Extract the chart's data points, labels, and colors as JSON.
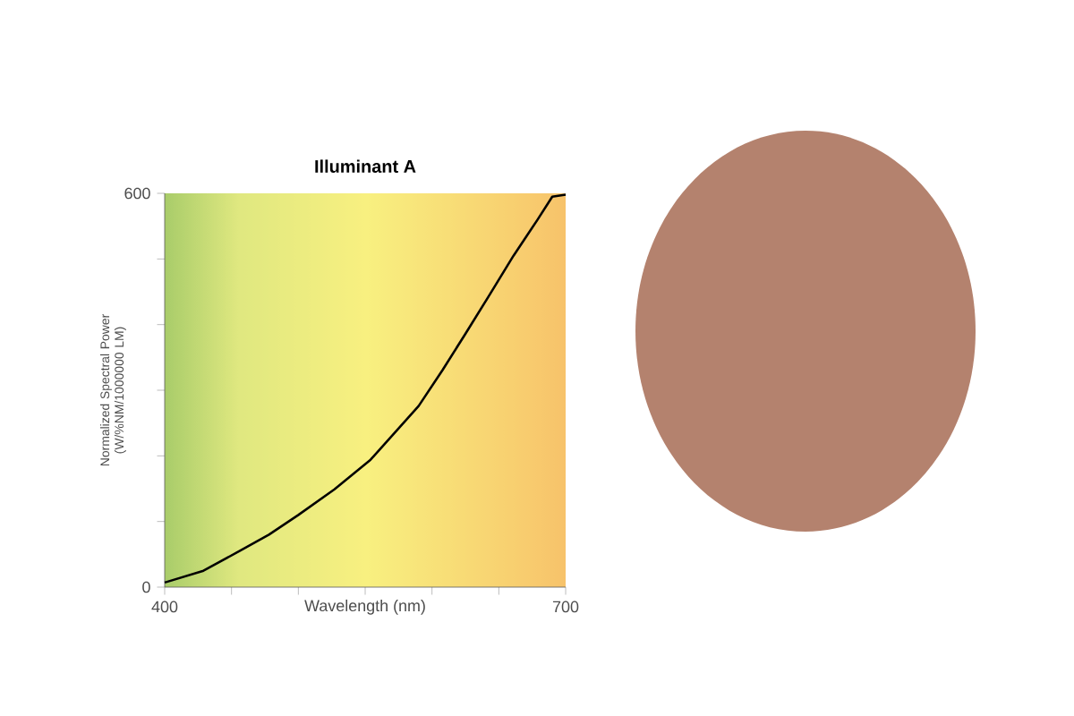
{
  "chart_data": {
    "type": "line",
    "title": "Illuminant A",
    "xlabel": "Wavelength (nm)",
    "ylabel": "Normalized Spectral Power (W/%NM/1000000 LM)",
    "x": [
      400,
      429,
      456,
      478,
      500,
      527,
      554,
      572,
      590,
      608,
      625,
      643,
      661,
      679,
      690,
      700
    ],
    "values": [
      7,
      25,
      55,
      80,
      110,
      149,
      194,
      235,
      276,
      331,
      386,
      445,
      505,
      560,
      595,
      598
    ],
    "color": "#000000",
    "marker": "none",
    "xlim": [
      400,
      700
    ],
    "ylim": [
      0,
      600
    ],
    "xticks": [
      400,
      {
        "value": 450,
        "label": null
      },
      {
        "value": 500,
        "label": null
      },
      {
        "value": 550,
        "label": null
      },
      {
        "value": 600,
        "label": null
      },
      {
        "value": 650,
        "label": null
      },
      700
    ],
    "yticks": [
      0,
      {
        "value": 100,
        "label": null
      },
      {
        "value": 200,
        "label": null
      },
      {
        "value": 300,
        "label": null
      },
      {
        "value": 400,
        "label": null
      },
      {
        "value": 500,
        "label": null
      },
      600
    ]
  }
}
